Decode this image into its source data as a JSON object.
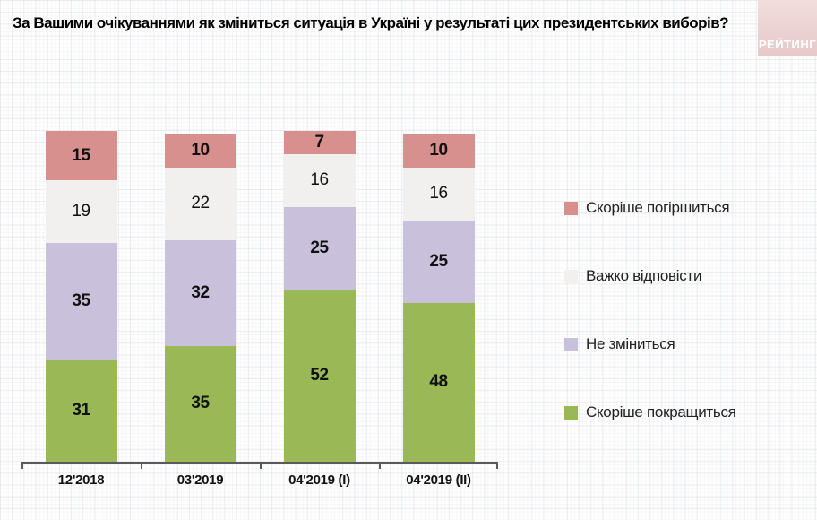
{
  "header": {
    "title": "За Вашими очікуваннями як зміниться ситуація в Україні у результаті цих президентських виборів?",
    "logo_text": "РЕЙТИНГ"
  },
  "colors": {
    "worse": "#d8908e",
    "hard_to_say": "#f2f0ee",
    "no_change": "#c9c1dc",
    "better": "#9ab956",
    "logo_background": "#ead0d0",
    "axis": "#5a5a5a"
  },
  "chart_data": {
    "type": "bar",
    "stacked": true,
    "orientation": "vertical",
    "title": "За Вашими очікуваннями як зміниться ситуація в Україні у результаті цих президентських виборів?",
    "categories": [
      "12'2018",
      "03'2019",
      "04'2019 (I)",
      "04'2019 (II)"
    ],
    "series": [
      {
        "name": "Скоріше покращиться",
        "color": "#9ab956",
        "values": [
          31,
          35,
          52,
          48
        ],
        "label_bold": true
      },
      {
        "name": "Не зміниться",
        "color": "#c9c1dc",
        "values": [
          35,
          32,
          25,
          25
        ],
        "label_bold": true
      },
      {
        "name": "Важко відповісти",
        "color": "#f2f0ee",
        "values": [
          19,
          22,
          16,
          16
        ],
        "label_bold": false
      },
      {
        "name": "Скоріше погіршиться",
        "color": "#d8908e",
        "values": [
          15,
          10,
          7,
          10
        ],
        "label_bold": true
      }
    ],
    "stack_order_note": "series listed bottom-to-top",
    "legend_order_top_to_bottom": [
      "Скоріше погіршиться",
      "Важко відповісти",
      "Не зміниться",
      "Скоріше покращиться"
    ],
    "data_labels": "inside segments",
    "xlabel": "",
    "ylabel": "",
    "ylim": [
      0,
      100
    ],
    "y_axis_shown": false,
    "legend_position": "right",
    "grid": "graph-paper background texture"
  }
}
